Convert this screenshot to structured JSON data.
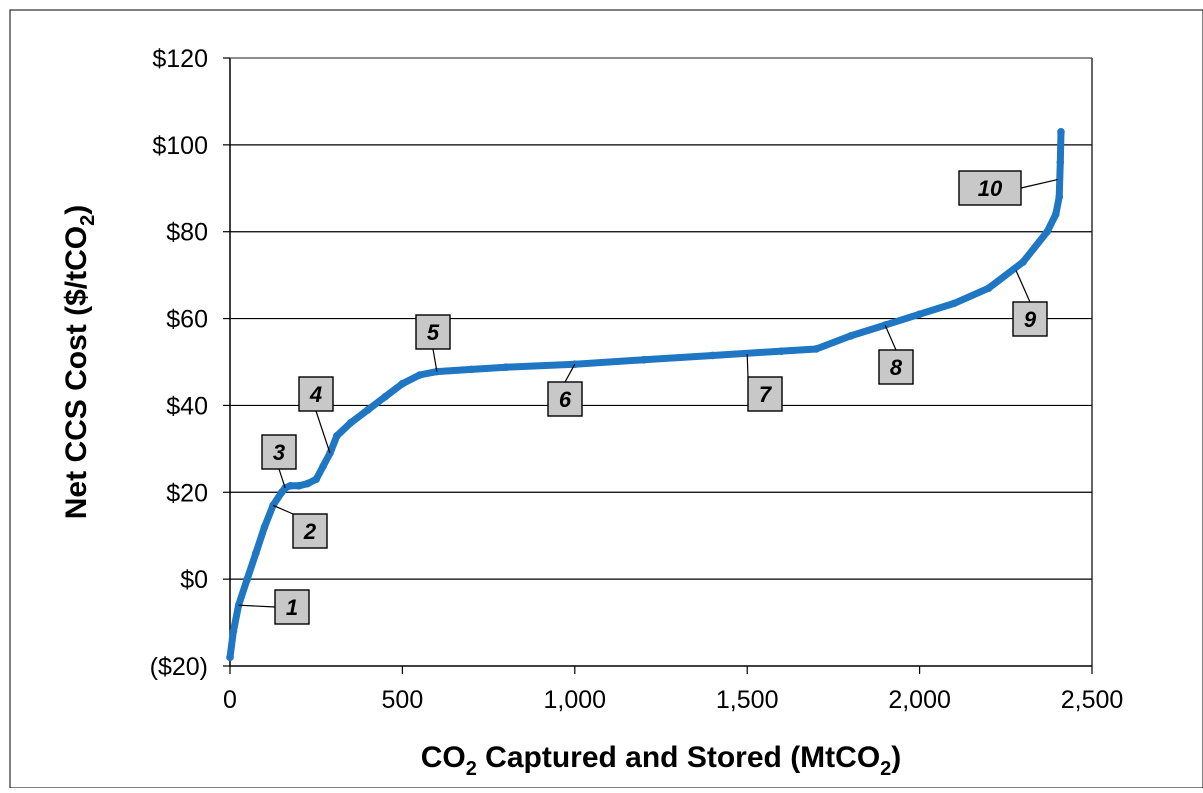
{
  "chart_data": {
    "type": "line",
    "ylabel_main": "Net CCS Cost ($/tCO",
    "ylabel_sub": "2",
    "ylabel_end": ")",
    "xlabel_pre": "CO",
    "xlabel_sub": "2",
    "xlabel_mid": " Captured and Stored (MtCO",
    "xlabel_sub2": "2",
    "xlabel_end": ")",
    "xlim": [
      0,
      2500
    ],
    "ylim": [
      -20,
      120
    ],
    "x_ticks": [
      0,
      500,
      1000,
      1500,
      2000,
      2500
    ],
    "x_tick_labels": [
      "0",
      "500",
      "1,000",
      "1,500",
      "2,000",
      "2,500"
    ],
    "y_ticks": [
      -20,
      0,
      20,
      40,
      60,
      80,
      100,
      120
    ],
    "y_tick_labels": [
      "($20)",
      "$0",
      "$20",
      "$40",
      "$60",
      "$80",
      "$100",
      "$120"
    ],
    "grid": "horizontal",
    "series_color": "#1f77c4",
    "series": [
      {
        "x": [
          0,
          10,
          25,
          50,
          75,
          100,
          125,
          150,
          160,
          175,
          200,
          225,
          250,
          270,
          290,
          310,
          350,
          400,
          450,
          500,
          550,
          600,
          700,
          800,
          1000,
          1200,
          1400,
          1600,
          1700,
          1800,
          1900,
          2000,
          2100,
          2200,
          2300,
          2370,
          2395,
          2405,
          2408,
          2410
        ],
        "y": [
          -18,
          -12,
          -6,
          0,
          6,
          12,
          17,
          20,
          21,
          21.5,
          21.5,
          22,
          23,
          26,
          29,
          33,
          36,
          39,
          42,
          45,
          47,
          47.8,
          48.3,
          48.8,
          49.5,
          50.5,
          51.5,
          52.5,
          53,
          56,
          58.5,
          61,
          63.5,
          67,
          73,
          80,
          84,
          88,
          96,
          103
        ]
      }
    ],
    "annotations": [
      {
        "label": "1",
        "x": 25,
        "y": -6
      },
      {
        "label": "2",
        "x": 125,
        "y": 17
      },
      {
        "label": "3",
        "x": 160,
        "y": 21
      },
      {
        "label": "4",
        "x": 290,
        "y": 29
      },
      {
        "label": "5",
        "x": 600,
        "y": 47.8
      },
      {
        "label": "6",
        "x": 1000,
        "y": 49.5
      },
      {
        "label": "7",
        "x": 1500,
        "y": 51.8
      },
      {
        "label": "8",
        "x": 1900,
        "y": 58.5
      },
      {
        "label": "9",
        "x": 2280,
        "y": 71
      },
      {
        "label": "10",
        "x": 2400,
        "y": 92
      }
    ]
  }
}
